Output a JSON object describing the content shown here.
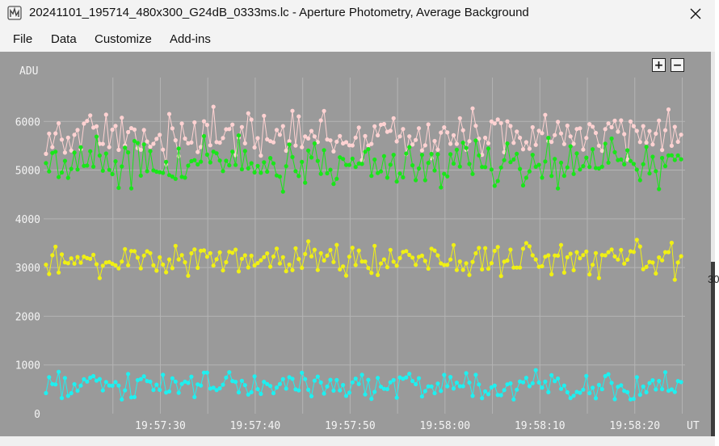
{
  "window": {
    "title": "20241101_195714_480x300_G24dB_0333ms.lc - Aperture Photometry, Average Background",
    "app_icon": "app-logo-icon",
    "close_icon": "close-icon"
  },
  "menu": {
    "items": [
      {
        "label": "File"
      },
      {
        "label": "Data"
      },
      {
        "label": "Customize"
      },
      {
        "label": "Add-ins"
      }
    ]
  },
  "toolbar": {
    "zoom_in_label": "+",
    "zoom_out_label": "−"
  },
  "colors": {
    "plot_background": "#9a9a9a",
    "grid": "#b4b4b4",
    "axis_text": "#f4f4f4",
    "series_pink": "#ffd2d2",
    "series_green": "#19e619",
    "series_yellow": "#f0f014",
    "series_cyan": "#1ef0f0"
  },
  "right_edge_fragment": "30",
  "chart_data": {
    "type": "scatter",
    "title": "",
    "xlabel": "UT",
    "ylabel": "ADU",
    "ylim": [
      0,
      6900
    ],
    "xlim": [
      "19:57:17.7",
      "19:58:25.3"
    ],
    "y_ticks": [
      "0",
      "1000",
      "2000",
      "3000",
      "4000",
      "5000",
      "6000"
    ],
    "x_ticks": [
      "19:57:30",
      "19:57:40",
      "19:57:50",
      "19:58:00",
      "19:58:10",
      "19:58:20"
    ],
    "grid": true,
    "legend": "none",
    "point_interval_s": 0.333,
    "series": [
      {
        "color": "#ffd2d2",
        "mean": 5700,
        "amplitude": 420
      },
      {
        "color": "#19e619",
        "mean": 5150,
        "amplitude": 430
      },
      {
        "color": "#f0f014",
        "mean": 3150,
        "amplitude": 300
      },
      {
        "color": "#1ef0f0",
        "mean": 560,
        "amplitude": 230
      }
    ]
  }
}
